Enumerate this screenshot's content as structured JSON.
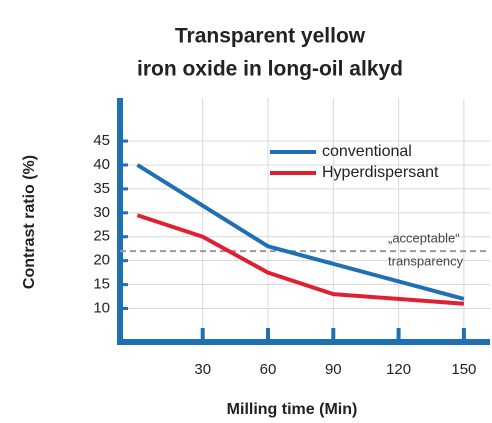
{
  "chart_data": {
    "type": "line",
    "title": [
      "Transparent yellow",
      "iron oxide in long-oil alkyd"
    ],
    "x_label": "Milling time (Min)",
    "y_label": "Contrast ratio (%)",
    "series": [
      {
        "name": "conventional",
        "color": "#1f6fb4",
        "x": [
          0,
          60,
          150
        ],
        "values": [
          40,
          23,
          12
        ]
      },
      {
        "name": "Hyperdispersant",
        "color": "#e02030",
        "x": [
          0,
          30,
          60,
          90,
          150
        ],
        "values": [
          29.5,
          25,
          17.5,
          13,
          11
        ]
      }
    ],
    "reference_line": {
      "value": 22,
      "label": [
        "„acceptable“",
        "transparency"
      ],
      "color": "#999999"
    },
    "xlim": [
      -8,
      162
    ],
    "xticks": [
      30,
      60,
      90,
      120,
      150
    ],
    "ylim": [
      3,
      54
    ],
    "yticks": [
      10,
      15,
      20,
      25,
      30,
      35,
      40,
      45
    ],
    "grid": true,
    "legend": "upper right",
    "axis_color": "#1f6fb4"
  }
}
